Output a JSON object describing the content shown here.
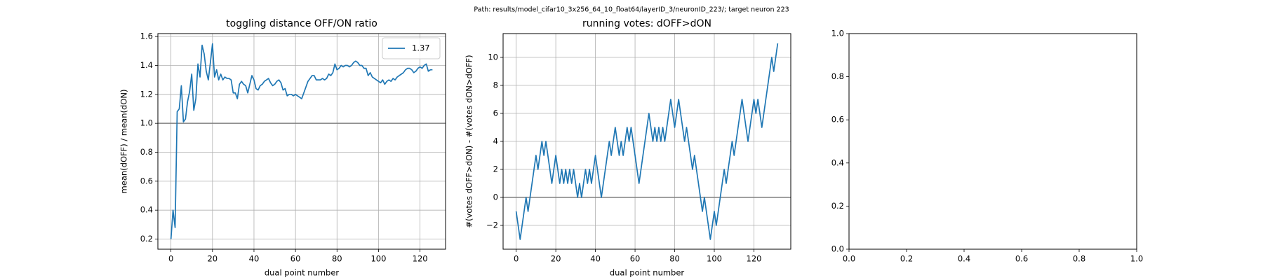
{
  "suptitle": "Path: results/model_cifar10_3x256_64_10_float64/layerID_3/neuronID_223/; target neuron 223",
  "chart_data": [
    {
      "type": "line",
      "title": "toggling distance OFF/ON ratio",
      "xlabel": "dual point number",
      "ylabel": "mean(dOFF) / mean(dON)",
      "xlim": [
        -6.3,
        132.3
      ],
      "ylim": [
        0.13,
        1.62
      ],
      "xticks": [
        0,
        20,
        40,
        60,
        80,
        100,
        120
      ],
      "yticks": [
        0.2,
        0.4,
        0.6,
        0.8,
        {
          "value": 1,
          "label": "1.0"
        },
        1.2,
        1.4,
        1.6
      ],
      "grid": true,
      "legend": "upper right",
      "hline": 1,
      "series": [
        {
          "name": "1.37",
          "color": "#1f77b4",
          "x": [
            0,
            1,
            2,
            3,
            4,
            5,
            6,
            7,
            8,
            9,
            10,
            11,
            12,
            13,
            14,
            15,
            16,
            17,
            18,
            19,
            20,
            21,
            22,
            23,
            24,
            25,
            26,
            27,
            28,
            29,
            30,
            31,
            32,
            33,
            34,
            35,
            36,
            37,
            38,
            39,
            40,
            41,
            42,
            43,
            44,
            45,
            46,
            47,
            48,
            49,
            50,
            51,
            52,
            53,
            54,
            55,
            56,
            57,
            58,
            59,
            60,
            61,
            62,
            63,
            64,
            65,
            66,
            67,
            68,
            69,
            70,
            71,
            72,
            73,
            74,
            75,
            76,
            77,
            78,
            79,
            80,
            81,
            82,
            83,
            84,
            85,
            86,
            87,
            88,
            89,
            90,
            91,
            92,
            93,
            94,
            95,
            96,
            97,
            98,
            99,
            100,
            101,
            102,
            103,
            104,
            105,
            106,
            107,
            108,
            109,
            110,
            111,
            112,
            113,
            114,
            115,
            116,
            117,
            118,
            119,
            120,
            121,
            122,
            123,
            124,
            125,
            126
          ],
          "values": [
            0.2,
            0.4,
            0.28,
            1.08,
            1.1,
            1.26,
            1.01,
            1.03,
            1.15,
            1.22,
            1.34,
            1.09,
            1.17,
            1.41,
            1.32,
            1.54,
            1.48,
            1.36,
            1.3,
            1.42,
            1.55,
            1.32,
            1.37,
            1.3,
            1.34,
            1.3,
            1.32,
            1.31,
            1.31,
            1.3,
            1.21,
            1.21,
            1.17,
            1.27,
            1.29,
            1.27,
            1.26,
            1.21,
            1.27,
            1.33,
            1.3,
            1.24,
            1.23,
            1.26,
            1.27,
            1.29,
            1.3,
            1.31,
            1.28,
            1.26,
            1.27,
            1.29,
            1.3,
            1.28,
            1.23,
            1.24,
            1.19,
            1.2,
            1.2,
            1.19,
            1.2,
            1.19,
            1.18,
            1.17,
            1.21,
            1.25,
            1.29,
            1.31,
            1.33,
            1.33,
            1.3,
            1.3,
            1.3,
            1.31,
            1.3,
            1.31,
            1.34,
            1.33,
            1.35,
            1.41,
            1.37,
            1.38,
            1.4,
            1.39,
            1.4,
            1.4,
            1.39,
            1.4,
            1.42,
            1.43,
            1.42,
            1.4,
            1.4,
            1.38,
            1.38,
            1.33,
            1.35,
            1.32,
            1.31,
            1.3,
            1.29,
            1.28,
            1.3,
            1.27,
            1.29,
            1.3,
            1.29,
            1.31,
            1.3,
            1.32,
            1.33,
            1.34,
            1.35,
            1.37,
            1.38,
            1.38,
            1.37,
            1.35,
            1.36,
            1.38,
            1.39,
            1.38,
            1.4,
            1.41,
            1.36,
            1.37,
            1.37
          ]
        }
      ]
    },
    {
      "type": "line",
      "title": "running votes: dOFF>dON",
      "xlabel": "dual point number",
      "ylabel": "#(votes dOFF>dON) - #(votes dON>dOFF)",
      "xlim": [
        -6.6,
        138.6
      ],
      "ylim": [
        -3.7,
        11.7
      ],
      "xticks": [
        0,
        20,
        40,
        60,
        80,
        100,
        120
      ],
      "yticks": [
        {
          "value": -2,
          "label": "−2"
        },
        0,
        2,
        4,
        6,
        8,
        10
      ],
      "grid": true,
      "hline": 0,
      "series": [
        {
          "color": "#1f77b4",
          "x": [
            0,
            1,
            2,
            3,
            4,
            5,
            6,
            7,
            8,
            9,
            10,
            11,
            12,
            13,
            14,
            15,
            16,
            17,
            18,
            19,
            20,
            21,
            22,
            23,
            24,
            25,
            26,
            27,
            28,
            29,
            30,
            31,
            32,
            33,
            34,
            35,
            36,
            37,
            38,
            39,
            40,
            41,
            42,
            43,
            44,
            45,
            46,
            47,
            48,
            49,
            50,
            51,
            52,
            53,
            54,
            55,
            56,
            57,
            58,
            59,
            60,
            61,
            62,
            63,
            64,
            65,
            66,
            67,
            68,
            69,
            70,
            71,
            72,
            73,
            74,
            75,
            76,
            77,
            78,
            79,
            80,
            81,
            82,
            83,
            84,
            85,
            86,
            87,
            88,
            89,
            90,
            91,
            92,
            93,
            94,
            95,
            96,
            97,
            98,
            99,
            100,
            101,
            102,
            103,
            104,
            105,
            106,
            107,
            108,
            109,
            110,
            111,
            112,
            113,
            114,
            115,
            116,
            117,
            118,
            119,
            120,
            121,
            122,
            123,
            124,
            125,
            126,
            127,
            128,
            129,
            130,
            131,
            132
          ],
          "values": [
            -1,
            -2,
            -3,
            -2,
            -1,
            0,
            -1,
            0,
            1,
            2,
            3,
            2,
            3,
            4,
            3,
            4,
            3,
            2,
            1,
            2,
            3,
            2,
            1,
            2,
            1,
            2,
            1,
            2,
            1,
            2,
            1,
            0,
            1,
            0,
            1,
            2,
            1,
            2,
            1,
            2,
            3,
            2,
            1,
            0,
            1,
            2,
            3,
            4,
            3,
            4,
            5,
            4,
            3,
            4,
            3,
            4,
            5,
            4,
            5,
            4,
            3,
            2,
            1,
            2,
            3,
            4,
            5,
            6,
            5,
            4,
            5,
            4,
            5,
            4,
            5,
            4,
            5,
            6,
            7,
            6,
            5,
            6,
            7,
            6,
            5,
            4,
            5,
            4,
            3,
            2,
            3,
            2,
            1,
            0,
            -1,
            0,
            -1,
            -2,
            -3,
            -2,
            -1,
            -2,
            -1,
            0,
            1,
            2,
            1,
            2,
            3,
            4,
            3,
            4,
            5,
            6,
            7,
            6,
            5,
            4,
            5,
            6,
            7,
            6,
            7,
            6,
            5,
            6,
            7,
            8,
            9,
            10,
            9,
            10,
            11
          ]
        }
      ]
    },
    {
      "type": "line",
      "xlim": [
        0,
        1
      ],
      "ylim": [
        0,
        1
      ],
      "xticks": [
        {
          "value": 0,
          "label": "0.0"
        },
        0.2,
        0.4,
        0.6,
        0.8,
        {
          "value": 1,
          "label": "1.0"
        }
      ],
      "yticks": [
        {
          "value": 0,
          "label": "0.0"
        },
        0.2,
        0.4,
        0.6,
        0.8,
        {
          "value": 1,
          "label": "1.0"
        }
      ],
      "grid": false,
      "series": []
    }
  ]
}
